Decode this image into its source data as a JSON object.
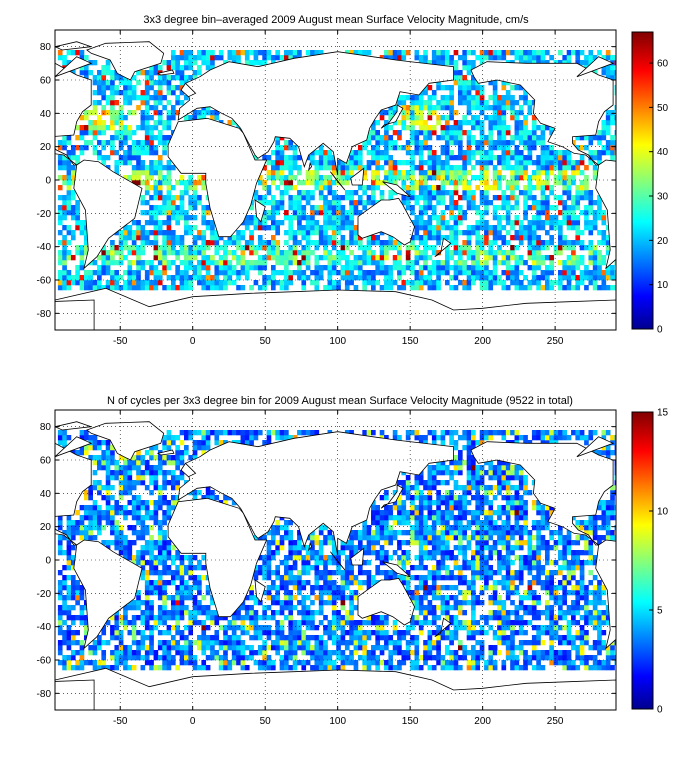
{
  "chart_data": [
    {
      "type": "heatmap",
      "title": "3x3 degree bin–averaged 2009 August mean Surface Velocity Magnitude, cm/s",
      "xlabel": "",
      "ylabel": "",
      "xlim": [
        -95,
        292
      ],
      "ylim": [
        -90,
        90
      ],
      "x_ticks": [
        "-50",
        "0",
        "50",
        "100",
        "150",
        "200",
        "250"
      ],
      "y_ticks": [
        "80",
        "60",
        "40",
        "20",
        "0",
        "-20",
        "-40",
        "-60",
        "-80"
      ],
      "colorbar_range": [
        0,
        67
      ],
      "colorbar_ticks": [
        "60",
        "50",
        "40",
        "30",
        "20",
        "10",
        "0"
      ],
      "colormap": "jet",
      "grid": true,
      "bin_size_deg": 3
    },
    {
      "type": "heatmap",
      "title": "N of cycles per 3x3 degree bin for 2009 August mean Surface Velocity Magnitude (9522 in total)",
      "xlabel": "",
      "ylabel": "",
      "xlim": [
        -95,
        292
      ],
      "ylim": [
        -90,
        90
      ],
      "x_ticks": [
        "-50",
        "0",
        "50",
        "100",
        "150",
        "200",
        "250"
      ],
      "y_ticks": [
        "80",
        "60",
        "40",
        "20",
        "0",
        "-20",
        "-40",
        "-60",
        "-80"
      ],
      "colorbar_range": [
        0,
        15
      ],
      "colorbar_ticks": [
        "15",
        "10",
        "5",
        "0"
      ],
      "colormap": "jet",
      "grid": true,
      "bin_size_deg": 3
    }
  ]
}
